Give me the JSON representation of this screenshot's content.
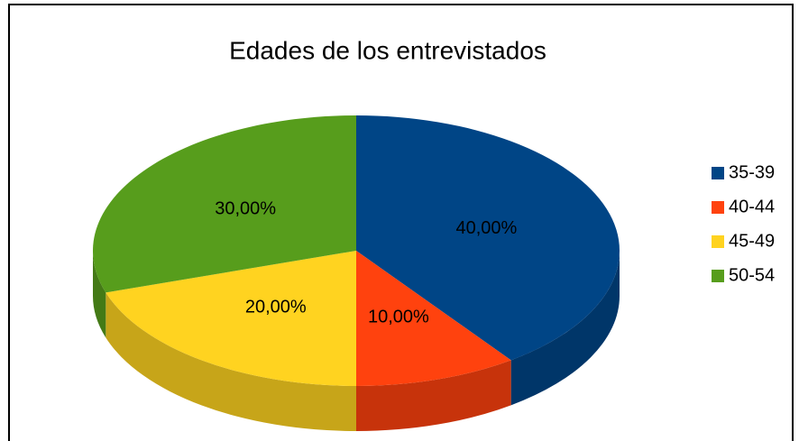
{
  "chart_data": {
    "type": "pie",
    "title": "Edades de los entrevistados",
    "categories": [
      "35-39",
      "40-44",
      "45-49",
      "50-54"
    ],
    "values": [
      40,
      10,
      20,
      30
    ],
    "value_labels": [
      "40,00%",
      "10,00%",
      "20,00%",
      "30,00%"
    ],
    "colors": [
      "#004586",
      "#ff420e",
      "#ffd320",
      "#579d1c"
    ],
    "legend": "right"
  }
}
